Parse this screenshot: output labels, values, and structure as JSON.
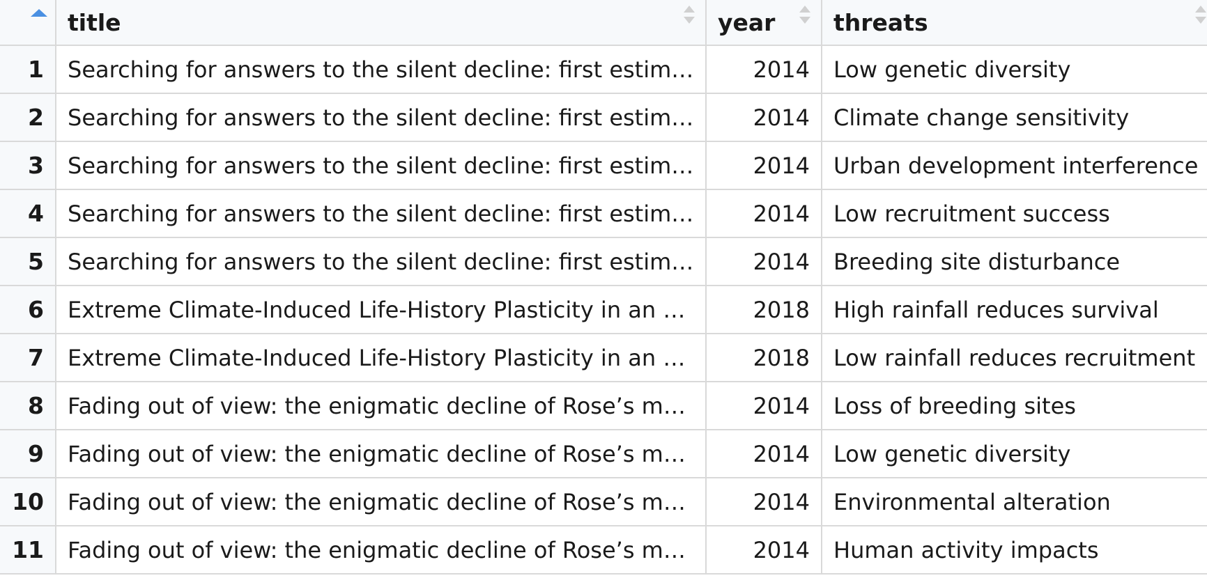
{
  "header": {
    "title_col": "title",
    "year_col": "year",
    "threats_col": "threats"
  },
  "colors": {
    "sort_active": "#4a90e2",
    "sort_inactive": "#d0d0d0",
    "gridline": "#d9d9d9",
    "header_bg": "#f7f9fb"
  },
  "rows": [
    {
      "num": "1",
      "title": "Searching for answers to the silent decline: first estim…",
      "year": "2014",
      "threats": "Low genetic diversity"
    },
    {
      "num": "2",
      "title": "Searching for answers to the silent decline: first estim…",
      "year": "2014",
      "threats": "Climate change sensitivity"
    },
    {
      "num": "3",
      "title": "Searching for answers to the silent decline: first estim…",
      "year": "2014",
      "threats": "Urban development interference"
    },
    {
      "num": "4",
      "title": "Searching for answers to the silent decline: first estim…",
      "year": "2014",
      "threats": "Low recruitment success"
    },
    {
      "num": "5",
      "title": "Searching for answers to the silent decline: first estim…",
      "year": "2014",
      "threats": "Breeding site disturbance"
    },
    {
      "num": "6",
      "title": "Extreme Climate-Induced Life-History Plasticity in an …",
      "year": "2018",
      "threats": "High rainfall reduces survival"
    },
    {
      "num": "7",
      "title": "Extreme Climate-Induced Life-History Plasticity in an …",
      "year": "2018",
      "threats": "Low rainfall reduces recruitment"
    },
    {
      "num": "8",
      "title": "Fading out of view: the enigmatic decline of Rose’s m…",
      "year": "2014",
      "threats": "Loss of breeding sites"
    },
    {
      "num": "9",
      "title": "Fading out of view: the enigmatic decline of Rose’s m…",
      "year": "2014",
      "threats": "Low genetic diversity"
    },
    {
      "num": "10",
      "title": "Fading out of view: the enigmatic decline of Rose’s m…",
      "year": "2014",
      "threats": "Environmental alteration"
    },
    {
      "num": "11",
      "title": "Fading out of view: the enigmatic decline of Rose’s m…",
      "year": "2014",
      "threats": "Human activity impacts"
    }
  ]
}
